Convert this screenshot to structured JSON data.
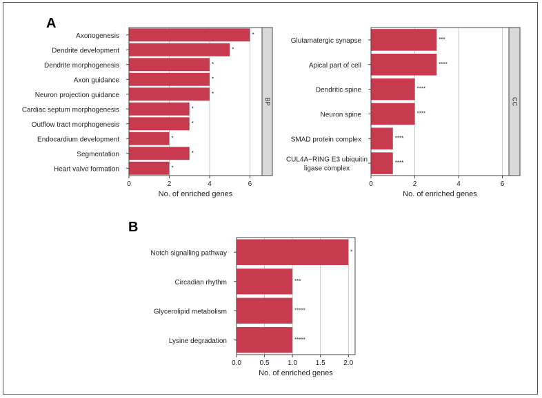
{
  "bar_color": "#c83a4e",
  "strip_fill": "#d9d9d9",
  "grid_color": "#bcbcbc",
  "panels": {
    "a": "A",
    "b": "B"
  },
  "chart_data": [
    {
      "type": "bar",
      "orientation": "horizontal",
      "facet": "BP",
      "categories": [
        "Axonogenesis",
        "Dendrite development",
        "Dendrite morphogenesis",
        "Axon guidance",
        "Neuron projection guidance",
        "Cardiac septum morphogenesis",
        "Outflow tract morphogenesis",
        "Endocardium development",
        "Segmentation",
        "Heart valve formation"
      ],
      "values": [
        6,
        5,
        4,
        4,
        4,
        3,
        3,
        2,
        3,
        2
      ],
      "significance": [
        "*",
        "*",
        "*",
        "*",
        "*",
        "*",
        "*",
        "*",
        "*",
        "*"
      ],
      "xlabel": "No. of enriched genes",
      "xlim": [
        0,
        6.6
      ],
      "xticks": [
        0,
        2,
        4,
        6
      ],
      "xtick_labels": [
        "0",
        "2",
        "4",
        "6"
      ]
    },
    {
      "type": "bar",
      "orientation": "horizontal",
      "facet": "CC",
      "categories": [
        "Glutamatergic synapse",
        "Apical part of cell",
        "Dendritic spine",
        "Neuron spine",
        "SMAD protein complex",
        "CUL4A−RING E3 ubiquitin ligase complex"
      ],
      "category_lines": [
        [
          "Glutamatergic synapse"
        ],
        [
          "Apical part of cell"
        ],
        [
          "Dendritic spine"
        ],
        [
          "Neuron spine"
        ],
        [
          "SMAD protein complex"
        ],
        [
          "CUL4A−RING E3 ubiquitin",
          "ligase complex"
        ]
      ],
      "values": [
        3,
        3,
        2,
        2,
        1,
        1
      ],
      "significance": [
        "***",
        "****",
        "****",
        "****",
        "****",
        "****"
      ],
      "xlabel": "No. of enriched genes",
      "xlim": [
        0,
        6.3
      ],
      "xticks": [
        0,
        2,
        4,
        6
      ],
      "xtick_labels": [
        "0",
        "2",
        "4",
        "6"
      ]
    },
    {
      "type": "bar",
      "orientation": "horizontal",
      "categories": [
        "Notch signalling pathway",
        "Circadian rhythm",
        "Glycerolipid metabolism",
        "Lysine degradation"
      ],
      "values": [
        2,
        1,
        1,
        1
      ],
      "significance": [
        "*",
        "***",
        "*****",
        "*****"
      ],
      "xlabel": "No. of enriched genes",
      "xlim": [
        0,
        2.12
      ],
      "xticks": [
        0,
        0.5,
        1,
        1.5,
        2
      ],
      "xtick_labels": [
        "0.0",
        "0.5",
        "1.0",
        "1.5",
        "2.0"
      ]
    }
  ]
}
